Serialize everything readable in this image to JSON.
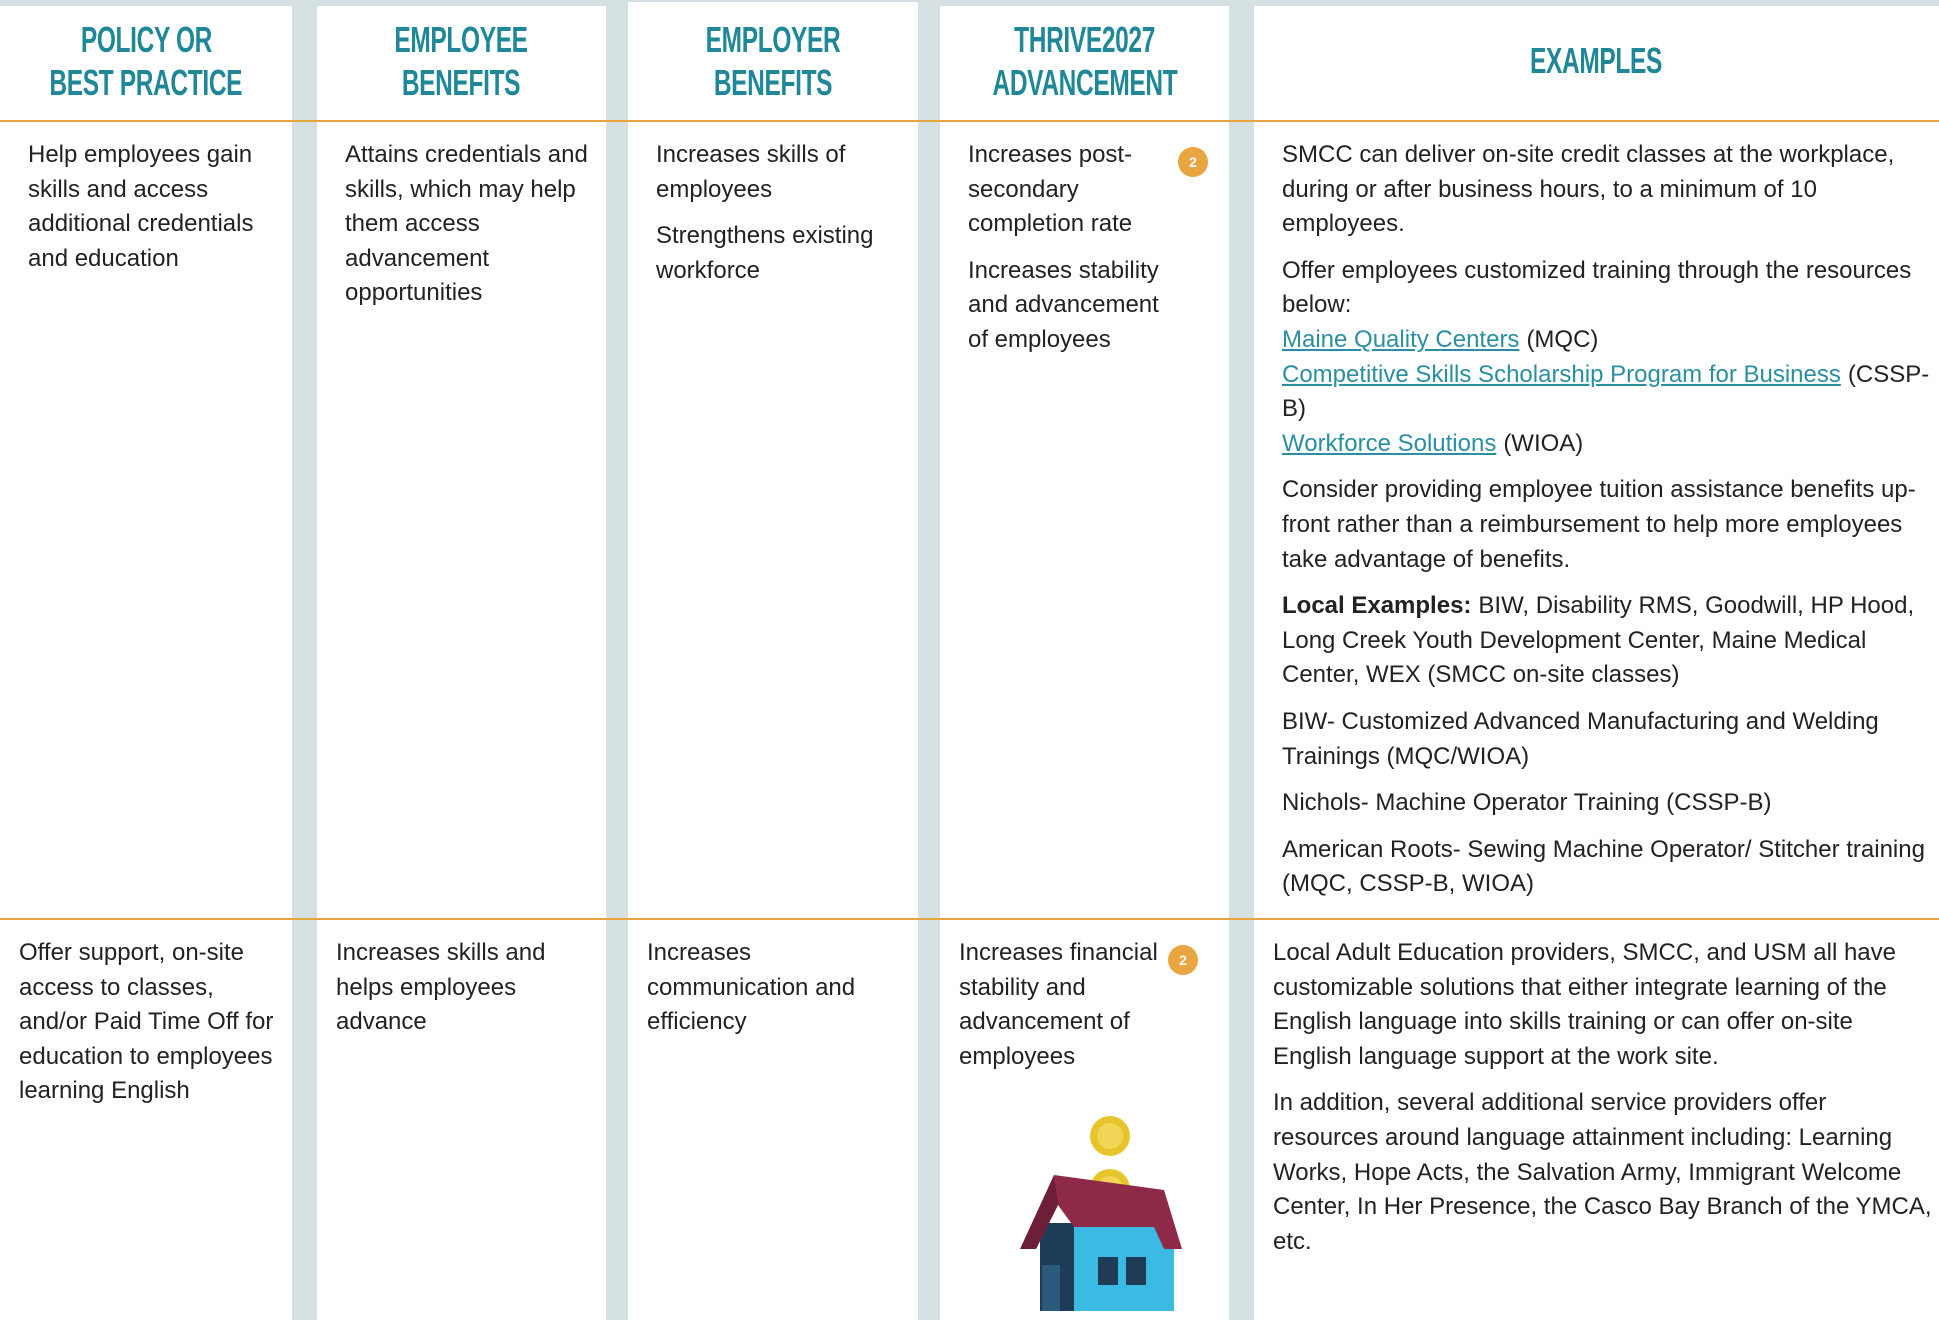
{
  "header": {
    "columns": [
      [
        "POLICY OR",
        "BEST PRACTICE"
      ],
      [
        "EMPLOYEE",
        "BENEFITS"
      ],
      [
        "EMPLOYER",
        "BENEFITS"
      ],
      [
        "THRIVE2027",
        "ADVANCEMENT"
      ],
      [
        "EXAMPLES"
      ]
    ]
  },
  "rows": [
    {
      "cells": [
        {
          "paragraphs": [
            "Help employees gain skills and access additional credentials and education"
          ]
        },
        {
          "paragraphs": [
            "Attains credentials and skills, which may help them access advancement opportunities"
          ]
        },
        {
          "paragraphs": [
            "Increases skills  of employees",
            "Strengthens existing workforce"
          ]
        },
        {
          "paragraphs": [
            "Increases post-secondary completion rate",
            "Increases stability and advancement of employees"
          ],
          "badge": "2"
        },
        {
          "paragraphs": [
            "SMCC can deliver on-site credit classes at the workplace, during or after business hours, to a minimum of 10 employees.",
            {
              "text": "Offer employees customized training through the resources below:",
              "links": [
                {
                  "link": "Maine Quality Centers",
                  "suffix": "(MQC)"
                },
                {
                  "link": "Competitive Skills Scholarship Program for Business",
                  "suffix": "(CSSP-B)"
                },
                {
                  "link": "Workforce Solutions",
                  "suffix": "(WIOA)"
                }
              ]
            },
            "Consider providing employee tuition assistance benefits up-front rather than a reimbursement to help more employees take advantage of benefits.",
            {
              "bold": "Local Examples:",
              "text": "BIW, Disability RMS, Goodwill, HP Hood, Long Creek Youth Development Center, Maine Medical Center, WEX (SMCC on-site classes)"
            },
            "BIW- Customized Advanced Manufacturing and Welding Trainings (MQC/WIOA)",
            "Nichols- Machine Operator Training (CSSP-B)",
            "American Roots- Sewing Machine Operator/ Stitcher training  (MQC, CSSP-B, WIOA)"
          ]
        }
      ]
    },
    {
      "cells": [
        {
          "paragraphs": [
            "Offer support, on-site access to classes, and/or Paid Time Off for education to employees learning English"
          ]
        },
        {
          "paragraphs": [
            "Increases skills and helps employees advance"
          ]
        },
        {
          "paragraphs": [
            "Increases communication and efficiency"
          ]
        },
        {
          "paragraphs": [
            "Increases financial stability and advancement of employees"
          ],
          "badge": "2"
        },
        {
          "paragraphs": [
            "Local Adult Education providers, SMCC, and USM all have customizable solutions that either integrate learning of the English language into skills training or can offer on-site English language support at the work site.",
            "In addition, several additional service providers offer resources around language attainment including: Learning Works, Hope Acts, the Salvation Army, Immigrant Welcome Center, In Her Presence, the Casco Bay Branch of the YMCA, etc."
          ]
        }
      ]
    }
  ]
}
